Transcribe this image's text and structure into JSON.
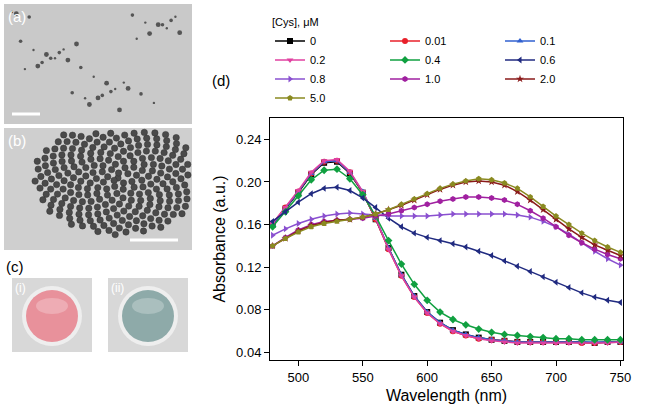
{
  "figure": {
    "panels": [
      {
        "label": "(a)"
      },
      {
        "label": "(b)"
      },
      {
        "label": "(c)",
        "wells": [
          {
            "label": "(i)",
            "color": "#e8919b"
          },
          {
            "label": "(ii)",
            "color": "#8eaaa9"
          }
        ]
      }
    ]
  },
  "chart_data": {
    "type": "line",
    "label": "(d)",
    "x_label": "Wavelength (nm)",
    "y_label": "Absorbance (a.u.)",
    "legend_title": "[Cys], μM",
    "legend": "top",
    "grid": false,
    "xlim": [
      478,
      752
    ],
    "ylim": [
      0.033,
      0.26
    ],
    "xticks": [
      500,
      550,
      600,
      650,
      700,
      750
    ],
    "yticks": [
      0.04,
      0.08,
      0.12,
      0.16,
      {
        "value": 0.2,
        "label": "0.20"
      },
      0.24
    ],
    "x": [
      480,
      490,
      500,
      510,
      520,
      530,
      540,
      550,
      560,
      570,
      580,
      590,
      600,
      610,
      620,
      630,
      640,
      650,
      660,
      670,
      680,
      690,
      700,
      710,
      720,
      730,
      740,
      750
    ],
    "series": [
      {
        "name": "0",
        "color": "#000000",
        "marker": "square",
        "values": [
          0.16,
          0.175,
          0.19,
          0.207,
          0.218,
          0.219,
          0.208,
          0.19,
          0.165,
          0.138,
          0.113,
          0.093,
          0.078,
          0.068,
          0.061,
          0.057,
          0.054,
          0.052,
          0.051,
          0.05,
          0.05,
          0.05,
          0.05,
          0.05,
          0.05,
          0.049,
          0.05,
          0.05
        ]
      },
      {
        "name": "0.01",
        "color": "#e8202a",
        "marker": "circle",
        "values": [
          0.161,
          0.176,
          0.191,
          0.208,
          0.219,
          0.22,
          0.209,
          0.19,
          0.165,
          0.137,
          0.112,
          0.092,
          0.077,
          0.067,
          0.06,
          0.056,
          0.053,
          0.052,
          0.051,
          0.05,
          0.05,
          0.05,
          0.05,
          0.05,
          0.049,
          0.049,
          0.05,
          0.05
        ]
      },
      {
        "name": "0.1",
        "color": "#3060d0",
        "marker": "triangle-up",
        "values": [
          0.16,
          0.175,
          0.191,
          0.208,
          0.219,
          0.22,
          0.209,
          0.191,
          0.166,
          0.138,
          0.113,
          0.093,
          0.078,
          0.068,
          0.061,
          0.057,
          0.054,
          0.052,
          0.051,
          0.05,
          0.05,
          0.05,
          0.05,
          0.05,
          0.05,
          0.05,
          0.05,
          0.05
        ]
      },
      {
        "name": "0.2",
        "color": "#e040a0",
        "marker": "triangle-down",
        "values": [
          0.161,
          0.176,
          0.192,
          0.209,
          0.22,
          0.221,
          0.21,
          0.191,
          0.166,
          0.137,
          0.112,
          0.092,
          0.077,
          0.067,
          0.06,
          0.056,
          0.053,
          0.051,
          0.05,
          0.049,
          0.049,
          0.049,
          0.049,
          0.049,
          0.049,
          0.049,
          0.049,
          0.05
        ]
      },
      {
        "name": "0.4",
        "color": "#10a040",
        "marker": "diamond",
        "values": [
          0.158,
          0.172,
          0.187,
          0.202,
          0.211,
          0.212,
          0.203,
          0.188,
          0.168,
          0.145,
          0.123,
          0.104,
          0.089,
          0.078,
          0.071,
          0.066,
          0.062,
          0.059,
          0.057,
          0.056,
          0.055,
          0.054,
          0.053,
          0.053,
          0.052,
          0.052,
          0.052,
          0.052
        ]
      },
      {
        "name": "0.6",
        "color": "#202a80",
        "marker": "triangle-left",
        "values": [
          0.163,
          0.172,
          0.181,
          0.189,
          0.194,
          0.195,
          0.192,
          0.185,
          0.176,
          0.166,
          0.158,
          0.152,
          0.148,
          0.145,
          0.142,
          0.139,
          0.135,
          0.131,
          0.126,
          0.121,
          0.116,
          0.111,
          0.106,
          0.101,
          0.096,
          0.092,
          0.089,
          0.087
        ]
      },
      {
        "name": "0.8",
        "color": "#8a50d0",
        "marker": "triangle-right",
        "values": [
          0.15,
          0.156,
          0.161,
          0.165,
          0.168,
          0.17,
          0.171,
          0.17,
          0.169,
          0.168,
          0.168,
          0.168,
          0.168,
          0.169,
          0.17,
          0.17,
          0.17,
          0.17,
          0.17,
          0.169,
          0.167,
          0.163,
          0.158,
          0.151,
          0.143,
          0.135,
          0.128,
          0.122
        ]
      },
      {
        "name": "1.0",
        "color": "#a020a0",
        "marker": "hexagon",
        "values": [
          0.14,
          0.148,
          0.155,
          0.16,
          0.163,
          0.164,
          0.165,
          0.166,
          0.168,
          0.17,
          0.173,
          0.176,
          0.179,
          0.182,
          0.184,
          0.186,
          0.186,
          0.185,
          0.183,
          0.179,
          0.173,
          0.166,
          0.158,
          0.15,
          0.143,
          0.137,
          0.132,
          0.128
        ]
      },
      {
        "name": "2.0",
        "color": "#8a1a1a",
        "marker": "star",
        "values": [
          0.14,
          0.147,
          0.154,
          0.159,
          0.162,
          0.164,
          0.165,
          0.167,
          0.17,
          0.174,
          0.178,
          0.183,
          0.188,
          0.193,
          0.197,
          0.2,
          0.201,
          0.2,
          0.197,
          0.191,
          0.183,
          0.174,
          0.165,
          0.156,
          0.148,
          0.141,
          0.136,
          0.131
        ]
      },
      {
        "name": "5.0",
        "color": "#8a8a20",
        "marker": "pentagon",
        "values": [
          0.14,
          0.147,
          0.153,
          0.158,
          0.161,
          0.163,
          0.165,
          0.167,
          0.17,
          0.174,
          0.179,
          0.184,
          0.189,
          0.194,
          0.198,
          0.201,
          0.203,
          0.202,
          0.199,
          0.194,
          0.186,
          0.177,
          0.168,
          0.16,
          0.152,
          0.145,
          0.139,
          0.134
        ]
      }
    ]
  }
}
